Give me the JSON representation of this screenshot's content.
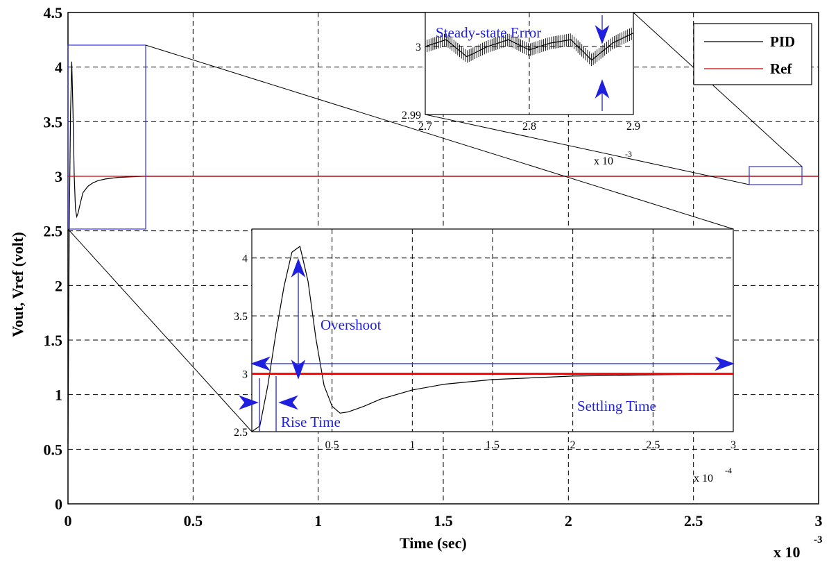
{
  "chart_data": [
    {
      "id": "main",
      "type": "line",
      "xlabel": "Time (sec)",
      "ylabel": "Vout, Vref (volt)",
      "x_multiplier": "x 10",
      "x_multiplier_exp": "-3",
      "xlim": [
        0,
        3
      ],
      "ylim": [
        0,
        4.5
      ],
      "grid": true,
      "xticks": [
        "0",
        "0.5",
        "1",
        "1.5",
        "2",
        "2.5",
        "3"
      ],
      "yticks": [
        "0",
        "0.5",
        "1",
        "1.5",
        "2",
        "2.5",
        "3",
        "3.5",
        "4",
        "4.5"
      ],
      "legend": {
        "placement": "top-right",
        "entries": [
          "PID",
          "Ref"
        ]
      },
      "series": [
        {
          "name": "PID",
          "color": "#000000",
          "x": [
            0,
            0.005,
            0.01,
            0.015,
            0.02,
            0.025,
            0.03,
            0.035,
            0.04,
            0.05,
            0.06,
            0.08,
            0.1,
            0.12,
            0.15,
            0.2,
            0.25,
            0.3,
            3.0
          ],
          "y": [
            0.55,
            2.5,
            3.55,
            4.05,
            3.6,
            3.0,
            2.7,
            2.63,
            2.66,
            2.76,
            2.85,
            2.91,
            2.94,
            2.96,
            2.975,
            2.99,
            2.995,
            3.0,
            3.0
          ]
        },
        {
          "name": "Ref",
          "color": "#cc0000",
          "x": [
            0,
            3
          ],
          "y": [
            3,
            3
          ]
        }
      ]
    },
    {
      "id": "inset-settling",
      "type": "line",
      "x_multiplier": "x 10",
      "x_multiplier_exp": "-4",
      "xlim": [
        0,
        3
      ],
      "ylim": [
        2.5,
        4.25
      ],
      "grid": true,
      "xticks": [
        "0.5",
        "1",
        "1.5",
        "2",
        "2.5",
        "3"
      ],
      "yticks": [
        "2.5",
        "3",
        "3.5",
        "4"
      ],
      "series": [
        {
          "name": "PID",
          "color": "#000000",
          "x": [
            0.0,
            0.05,
            0.1,
            0.15,
            0.2,
            0.25,
            0.3,
            0.35,
            0.4,
            0.45,
            0.5,
            0.55,
            0.6,
            0.7,
            0.8,
            1.0,
            1.2,
            1.5,
            2.0,
            2.5,
            3.0
          ],
          "y": [
            2.5,
            2.55,
            2.9,
            3.35,
            3.75,
            4.05,
            4.1,
            3.8,
            3.3,
            2.9,
            2.72,
            2.66,
            2.67,
            2.72,
            2.78,
            2.86,
            2.91,
            2.95,
            2.98,
            2.99,
            3.0
          ]
        },
        {
          "name": "Ref",
          "color": "#ff0000",
          "x": [
            0,
            3
          ],
          "y": [
            3,
            3
          ]
        }
      ],
      "annotations": [
        "Overshoot",
        "Rise Time",
        "Settling Time"
      ]
    },
    {
      "id": "inset-steady",
      "type": "line",
      "x_multiplier": "x 10",
      "x_multiplier_exp": "-3",
      "xlim": [
        2.7,
        2.9
      ],
      "ylim": [
        2.99,
        3.005
      ],
      "grid": true,
      "xticks": [
        "2.7",
        "2.8",
        "2.9"
      ],
      "yticks": [
        "2.99",
        "3"
      ],
      "series": [
        {
          "name": "PID",
          "color": "#000000",
          "x": [
            2.7,
            2.72,
            2.74,
            2.76,
            2.78,
            2.8,
            2.82,
            2.84,
            2.86,
            2.88,
            2.9
          ],
          "y": [
            3.0,
            3.001,
            2.9985,
            3.0,
            3.001,
            2.9995,
            3.0005,
            3.001,
            2.998,
            3.0005,
            3.002
          ]
        }
      ],
      "annotations": [
        "Steady-state Error"
      ]
    }
  ]
}
